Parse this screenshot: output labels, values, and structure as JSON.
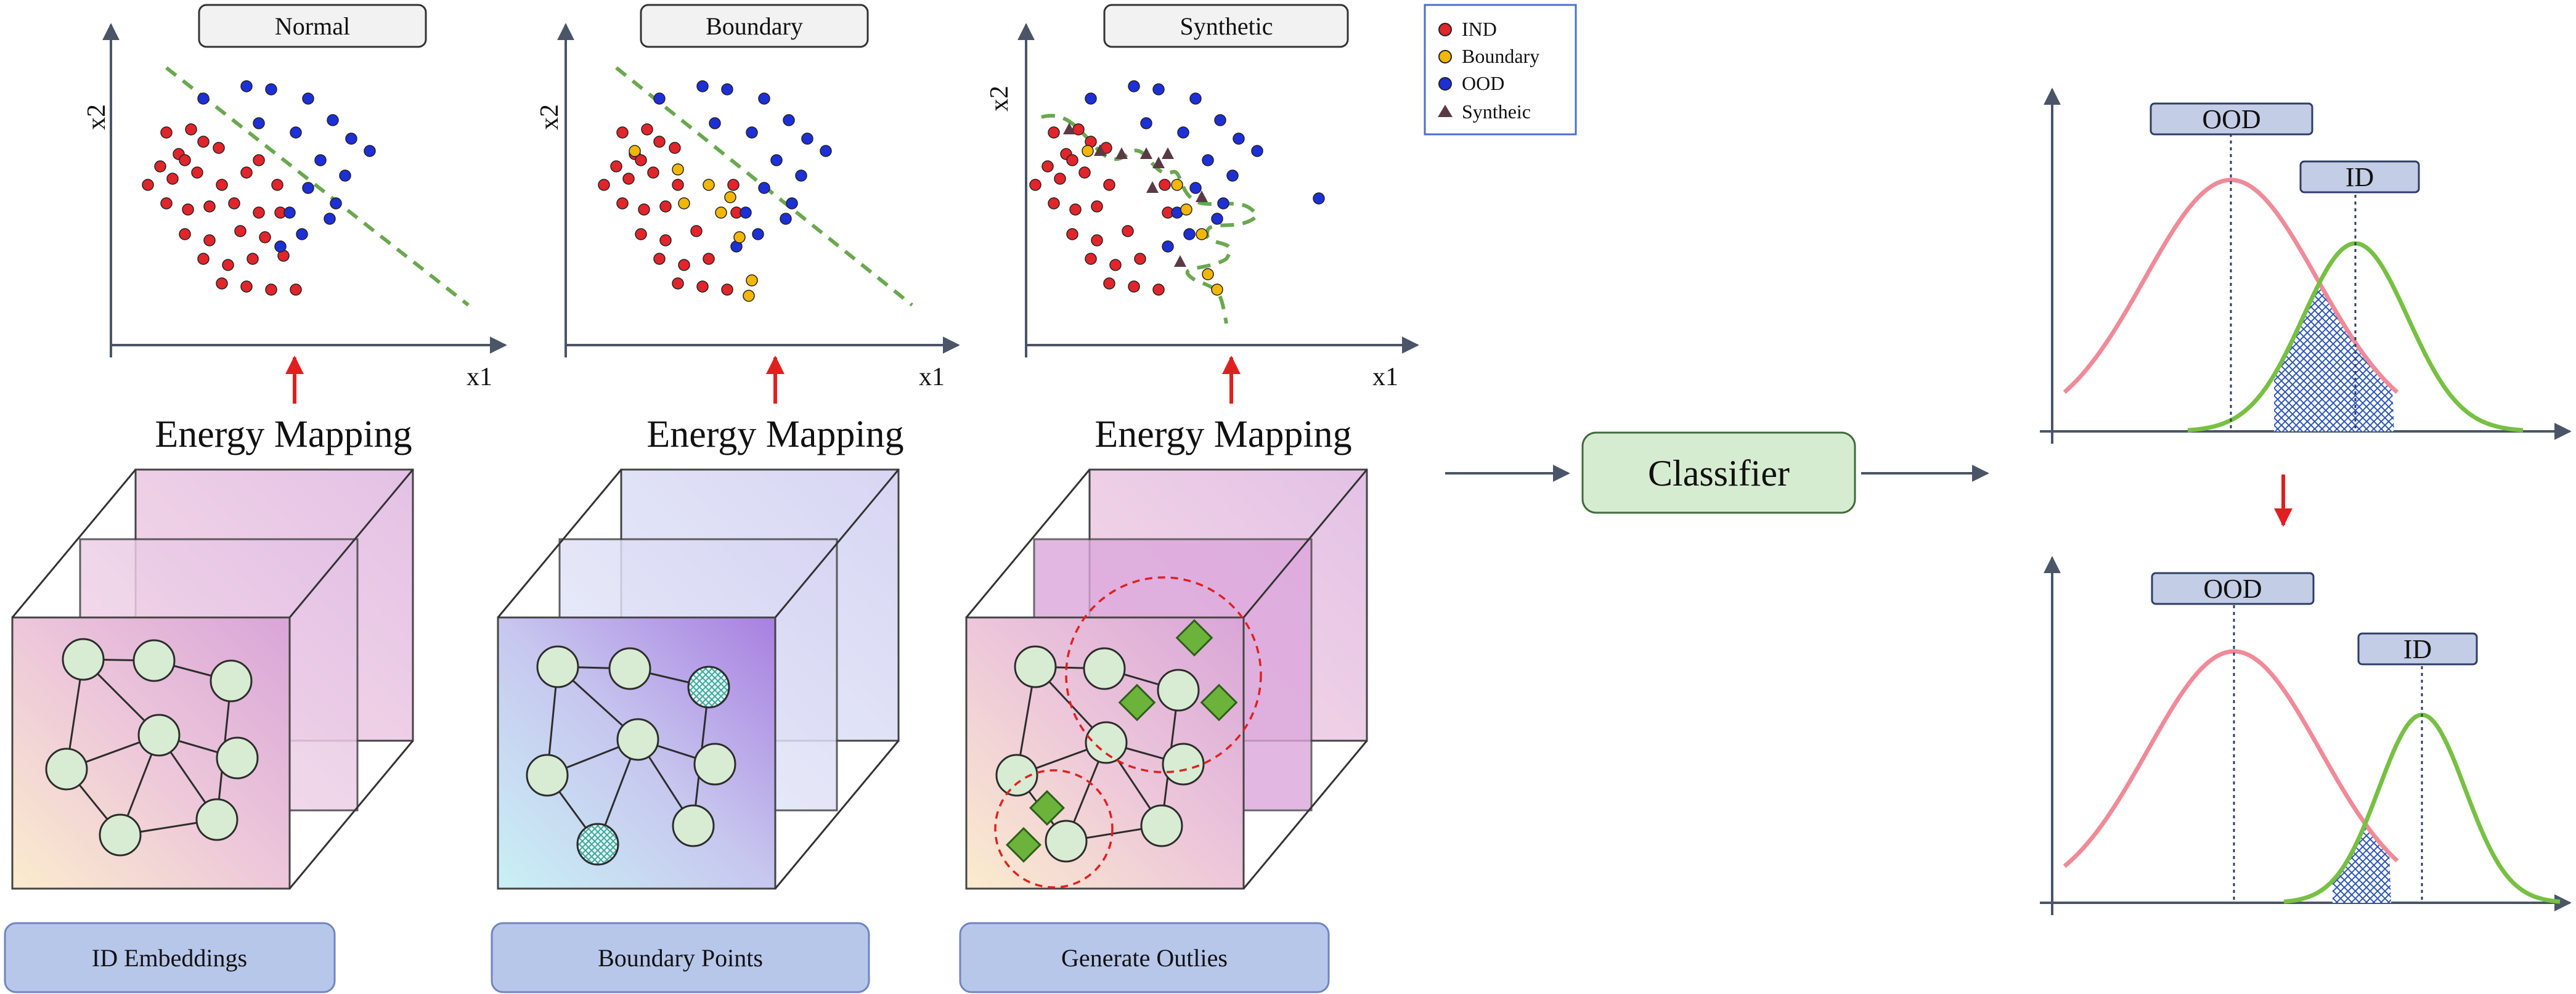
{
  "panels": [
    {
      "header": "Normal",
      "mapping_label": "Energy Mapping",
      "footer": "ID Embeddings",
      "xlabel": "x1",
      "ylabel": "x2"
    },
    {
      "header": "Boundary",
      "mapping_label": "Energy Mapping",
      "footer": "Boundary Points",
      "xlabel": "x1",
      "ylabel": "x2"
    },
    {
      "header": "Synthetic",
      "mapping_label": "Energy Mapping",
      "footer": "Generate Outlies",
      "xlabel": "x1",
      "ylabel": "x2"
    }
  ],
  "legend": {
    "items": [
      {
        "label": "IND",
        "color": "#e0252b",
        "shape": "circle"
      },
      {
        "label": "Boundary",
        "color": "#f2b705",
        "shape": "circle"
      },
      {
        "label": "OOD",
        "color": "#1d2fd6",
        "shape": "circle"
      },
      {
        "label": "Syntheic",
        "color": "#5a3a45",
        "shape": "triangle"
      }
    ]
  },
  "classifier": {
    "label": "Classifier"
  },
  "distributions": {
    "top": {
      "ood_label": "OOD",
      "id_label": "ID"
    },
    "bottom": {
      "ood_label": "OOD",
      "id_label": "ID"
    }
  },
  "colors": {
    "ind": "#e0252b",
    "boundary": "#f2b705",
    "ood": "#1d2fd6",
    "synthetic": "#5a3a45",
    "boundary_line": "#6aa84f",
    "ood_curve": "#f08a98",
    "id_curve": "#77c043",
    "arrow_red": "#e02020",
    "box_blue": "#b7c7ea"
  }
}
